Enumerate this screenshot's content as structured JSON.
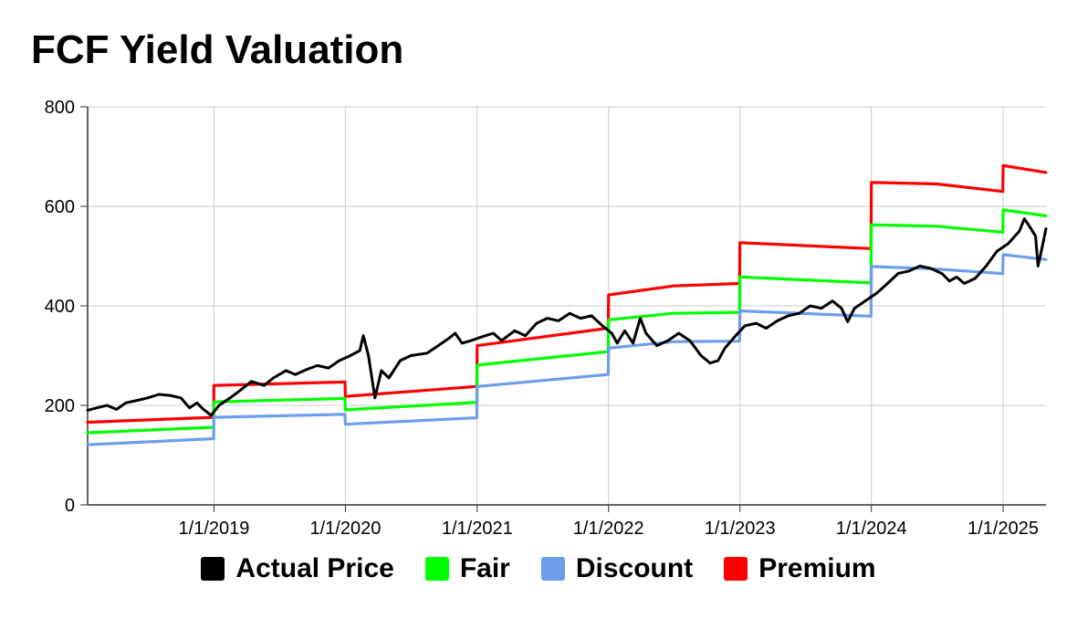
{
  "chart_data": {
    "type": "line",
    "title": "FCF Yield Valuation",
    "xlabel": "",
    "ylabel": "",
    "x_range": [
      "2018-01-15",
      "2025-04-30"
    ],
    "ylim": [
      0,
      800
    ],
    "y_ticks": [
      0,
      200,
      400,
      600,
      800
    ],
    "x_ticks": [
      {
        "date": "2019-01-01",
        "label": "1/1/2019"
      },
      {
        "date": "2020-01-01",
        "label": "1/1/2020"
      },
      {
        "date": "2021-01-01",
        "label": "1/1/2021"
      },
      {
        "date": "2022-01-01",
        "label": "1/1/2022"
      },
      {
        "date": "2023-01-01",
        "label": "1/1/2023"
      },
      {
        "date": "2024-01-01",
        "label": "1/1/2024"
      },
      {
        "date": "2025-01-01",
        "label": "1/1/2025"
      }
    ],
    "grid": true,
    "legend_position": "bottom",
    "series": [
      {
        "name": "Premium",
        "color": "#ff0000",
        "points": [
          [
            "2018-01-15",
            166
          ],
          [
            "2018-12-31",
            176
          ],
          [
            "2019-01-01",
            240
          ],
          [
            "2019-12-31",
            247
          ],
          [
            "2020-01-01",
            218
          ],
          [
            "2020-12-31",
            238
          ],
          [
            "2021-01-01",
            320
          ],
          [
            "2021-12-31",
            355
          ],
          [
            "2022-01-01",
            422
          ],
          [
            "2022-07-01",
            440
          ],
          [
            "2022-12-31",
            445
          ],
          [
            "2023-01-01",
            527
          ],
          [
            "2023-12-31",
            515
          ],
          [
            "2024-01-01",
            648
          ],
          [
            "2024-07-01",
            645
          ],
          [
            "2024-12-31",
            630
          ],
          [
            "2025-01-01",
            682
          ],
          [
            "2025-04-30",
            668
          ]
        ]
      },
      {
        "name": "Fair",
        "color": "#00ff00",
        "points": [
          [
            "2018-01-15",
            145
          ],
          [
            "2018-12-31",
            156
          ],
          [
            "2019-01-01",
            207
          ],
          [
            "2019-12-31",
            214
          ],
          [
            "2020-01-01",
            191
          ],
          [
            "2020-12-31",
            206
          ],
          [
            "2021-01-01",
            281
          ],
          [
            "2021-12-31",
            308
          ],
          [
            "2022-01-01",
            372
          ],
          [
            "2022-07-01",
            385
          ],
          [
            "2022-12-31",
            387
          ],
          [
            "2023-01-01",
            458
          ],
          [
            "2023-12-31",
            446
          ],
          [
            "2024-01-01",
            563
          ],
          [
            "2024-07-01",
            560
          ],
          [
            "2024-12-31",
            548
          ],
          [
            "2025-01-01",
            593
          ],
          [
            "2025-04-30",
            581
          ]
        ]
      },
      {
        "name": "Discount",
        "color": "#6d9eeb",
        "points": [
          [
            "2018-01-15",
            121
          ],
          [
            "2018-12-31",
            133
          ],
          [
            "2019-01-01",
            176
          ],
          [
            "2019-12-31",
            182
          ],
          [
            "2020-01-01",
            162
          ],
          [
            "2020-12-31",
            175
          ],
          [
            "2021-01-01",
            238
          ],
          [
            "2021-12-31",
            262
          ],
          [
            "2022-01-01",
            315
          ],
          [
            "2022-07-01",
            328
          ],
          [
            "2022-12-31",
            329
          ],
          [
            "2023-01-01",
            390
          ],
          [
            "2023-12-31",
            379
          ],
          [
            "2024-01-01",
            479
          ],
          [
            "2024-07-01",
            474
          ],
          [
            "2024-12-31",
            465
          ],
          [
            "2025-01-01",
            503
          ],
          [
            "2025-04-30",
            493
          ]
        ]
      },
      {
        "name": "Actual Price",
        "color": "#000000",
        "points": [
          [
            "2018-01-15",
            190
          ],
          [
            "2018-02-10",
            195
          ],
          [
            "2018-03-10",
            200
          ],
          [
            "2018-04-05",
            192
          ],
          [
            "2018-05-01",
            205
          ],
          [
            "2018-06-01",
            210
          ],
          [
            "2018-07-01",
            215
          ],
          [
            "2018-08-01",
            222
          ],
          [
            "2018-09-01",
            220
          ],
          [
            "2018-10-01",
            215
          ],
          [
            "2018-10-25",
            195
          ],
          [
            "2018-11-15",
            205
          ],
          [
            "2018-12-01",
            193
          ],
          [
            "2018-12-24",
            180
          ],
          [
            "2019-01-15",
            200
          ],
          [
            "2019-02-15",
            215
          ],
          [
            "2019-03-15",
            230
          ],
          [
            "2019-04-15",
            248
          ],
          [
            "2019-05-20",
            240
          ],
          [
            "2019-06-15",
            255
          ],
          [
            "2019-07-20",
            270
          ],
          [
            "2019-08-15",
            262
          ],
          [
            "2019-09-15",
            272
          ],
          [
            "2019-10-15",
            280
          ],
          [
            "2019-11-15",
            275
          ],
          [
            "2019-12-15",
            290
          ],
          [
            "2020-01-15",
            300
          ],
          [
            "2020-02-10",
            310
          ],
          [
            "2020-02-20",
            340
          ],
          [
            "2020-03-05",
            300
          ],
          [
            "2020-03-23",
            215
          ],
          [
            "2020-04-10",
            270
          ],
          [
            "2020-05-01",
            255
          ],
          [
            "2020-06-01",
            290
          ],
          [
            "2020-07-01",
            300
          ],
          [
            "2020-08-15",
            305
          ],
          [
            "2020-09-15",
            320
          ],
          [
            "2020-10-15",
            335
          ],
          [
            "2020-11-01",
            345
          ],
          [
            "2020-11-20",
            325
          ],
          [
            "2020-12-15",
            330
          ],
          [
            "2021-01-15",
            338
          ],
          [
            "2021-02-15",
            345
          ],
          [
            "2021-03-10",
            330
          ],
          [
            "2021-04-15",
            350
          ],
          [
            "2021-05-15",
            340
          ],
          [
            "2021-06-15",
            365
          ],
          [
            "2021-07-15",
            375
          ],
          [
            "2021-08-15",
            370
          ],
          [
            "2021-09-15",
            385
          ],
          [
            "2021-10-15",
            375
          ],
          [
            "2021-11-15",
            380
          ],
          [
            "2021-12-15",
            360
          ],
          [
            "2022-01-10",
            345
          ],
          [
            "2022-01-25",
            325
          ],
          [
            "2022-02-15",
            350
          ],
          [
            "2022-03-10",
            325
          ],
          [
            "2022-03-30",
            375
          ],
          [
            "2022-04-15",
            345
          ],
          [
            "2022-05-15",
            320
          ],
          [
            "2022-06-15",
            330
          ],
          [
            "2022-07-15",
            345
          ],
          [
            "2022-08-15",
            330
          ],
          [
            "2022-09-15",
            300
          ],
          [
            "2022-10-10",
            285
          ],
          [
            "2022-11-01",
            290
          ],
          [
            "2022-11-20",
            315
          ],
          [
            "2022-12-20",
            340
          ],
          [
            "2023-01-15",
            360
          ],
          [
            "2023-02-15",
            365
          ],
          [
            "2023-03-15",
            355
          ],
          [
            "2023-04-15",
            370
          ],
          [
            "2023-05-15",
            380
          ],
          [
            "2023-06-15",
            385
          ],
          [
            "2023-07-15",
            400
          ],
          [
            "2023-08-15",
            395
          ],
          [
            "2023-09-15",
            410
          ],
          [
            "2023-10-10",
            395
          ],
          [
            "2023-10-27",
            368
          ],
          [
            "2023-11-15",
            395
          ],
          [
            "2023-12-15",
            410
          ],
          [
            "2024-01-15",
            425
          ],
          [
            "2024-02-15",
            445
          ],
          [
            "2024-03-15",
            465
          ],
          [
            "2024-04-15",
            470
          ],
          [
            "2024-05-15",
            480
          ],
          [
            "2024-06-15",
            475
          ],
          [
            "2024-07-15",
            465
          ],
          [
            "2024-08-05",
            450
          ],
          [
            "2024-08-25",
            458
          ],
          [
            "2024-09-15",
            445
          ],
          [
            "2024-10-15",
            455
          ],
          [
            "2024-11-15",
            480
          ],
          [
            "2024-12-15",
            510
          ],
          [
            "2025-01-15",
            525
          ],
          [
            "2025-02-15",
            550
          ],
          [
            "2025-03-01",
            575
          ],
          [
            "2025-03-15",
            560
          ],
          [
            "2025-04-01",
            540
          ],
          [
            "2025-04-08",
            480
          ],
          [
            "2025-04-20",
            520
          ],
          [
            "2025-04-30",
            555
          ]
        ]
      }
    ],
    "legend": [
      {
        "label": "Actual Price",
        "color": "#000000"
      },
      {
        "label": "Fair",
        "color": "#00ff00"
      },
      {
        "label": "Discount",
        "color": "#6d9eeb"
      },
      {
        "label": "Premium",
        "color": "#ff0000"
      }
    ]
  }
}
